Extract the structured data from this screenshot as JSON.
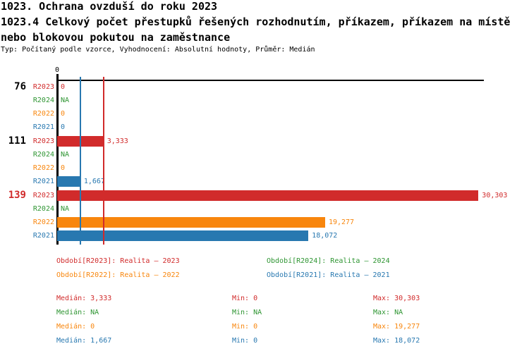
{
  "header": {
    "title": "1023. Ochrana ovzduší do roku 2023",
    "subtitle_line1": "1023.4 Celkový počet přestupků řešených rozhodnutím, příkazem, příkazem na místě",
    "subtitle_line2": "nebo blokovou pokutou na zaměstnance",
    "meta": "Typ: Počítaný podle vzorce, Vyhodnocení: Absolutní hodnoty, Průměr: Medián"
  },
  "colors": {
    "R2023": "#d12b2b",
    "R2024": "#2e9532",
    "R2022": "#f8860d",
    "R2021": "#2878b0",
    "axis": "#000000",
    "highlight": "#d12b2b"
  },
  "chart_data": {
    "type": "bar",
    "orientation": "horizontal",
    "title": "1023.4 Celkový počet přestupků řešených rozhodnutím, příkazem, příkazem na místě nebo blokovou pokutou na zaměstnance",
    "axis_zero_label": "0",
    "x_min": 0,
    "x_max": 30303,
    "series_order": [
      "R2023",
      "R2024",
      "R2022",
      "R2021"
    ],
    "groups": [
      {
        "label": "76",
        "highlighted": false,
        "rows": [
          {
            "series": "R2023",
            "value": 0,
            "display": "0"
          },
          {
            "series": "R2024",
            "value": null,
            "display": "NA"
          },
          {
            "series": "R2022",
            "value": 0,
            "display": "0"
          },
          {
            "series": "R2021",
            "value": 0,
            "display": "0"
          }
        ]
      },
      {
        "label": "111",
        "highlighted": false,
        "rows": [
          {
            "series": "R2023",
            "value": 3333,
            "display": "3,333"
          },
          {
            "series": "R2024",
            "value": null,
            "display": "NA"
          },
          {
            "series": "R2022",
            "value": 0,
            "display": "0"
          },
          {
            "series": "R2021",
            "value": 1667,
            "display": "1,667"
          }
        ]
      },
      {
        "label": "139",
        "highlighted": true,
        "rows": [
          {
            "series": "R2023",
            "value": 30303,
            "display": "30,303"
          },
          {
            "series": "R2024",
            "value": null,
            "display": "NA"
          },
          {
            "series": "R2022",
            "value": 19277,
            "display": "19,277"
          },
          {
            "series": "R2021",
            "value": 18072,
            "display": "18,072"
          }
        ]
      }
    ],
    "median_lines": [
      {
        "series": "R2021",
        "value": 1667
      },
      {
        "series": "R2023",
        "value": 3333
      }
    ]
  },
  "legend": [
    {
      "series": "R2023",
      "text": "Období[R2023]: Realita – 2023"
    },
    {
      "series": "R2024",
      "text": "Období[R2024]: Realita – 2024"
    },
    {
      "series": "R2022",
      "text": "Období[R2022]: Realita – 2022"
    },
    {
      "series": "R2021",
      "text": "Období[R2021]: Realita – 2021"
    }
  ],
  "stats_rows": [
    {
      "series": "R2023",
      "median": "Medián: 3,333",
      "min": "Min: 0",
      "max": "Max: 30,303"
    },
    {
      "series": "R2024",
      "median": "Medián: NA",
      "min": "Min: NA",
      "max": "Max: NA"
    },
    {
      "series": "R2022",
      "median": "Medián: 0",
      "min": "Min: 0",
      "max": "Max: 19,277"
    },
    {
      "series": "R2021",
      "median": "Medián: 1,667",
      "min": "Min: 0",
      "max": "Max: 18,072"
    }
  ]
}
